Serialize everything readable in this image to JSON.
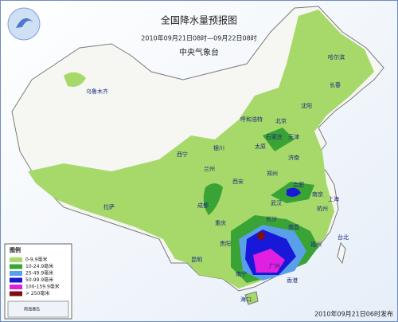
{
  "header": {
    "title": "全国降水量预报图",
    "period": "2010年09月21日08时—09月22日08时",
    "issuer": "中央气象台"
  },
  "cities": [
    "乌鲁木齐",
    "哈尔滨",
    "长春",
    "沈阳",
    "呼和浩特",
    "北京",
    "天津",
    "石家庄",
    "太原",
    "济南",
    "银川",
    "西宁",
    "兰州",
    "郑州",
    "西安",
    "拉萨",
    "成都",
    "重庆",
    "武汉",
    "合肥",
    "南京",
    "上海",
    "杭州",
    "长沙",
    "南昌",
    "福州",
    "台北",
    "贵阳",
    "昆明",
    "南宁",
    "广州",
    "香港",
    "海口"
  ],
  "legend": {
    "title": "图例",
    "items": [
      {
        "label": "0-9.9毫米",
        "color": "#a6d96a"
      },
      {
        "label": "10-24.9毫米",
        "color": "#3aa335"
      },
      {
        "label": "25-49.9毫米",
        "color": "#5aa0e8"
      },
      {
        "label": "50-99.9毫米",
        "color": "#1818d8"
      },
      {
        "label": "100-159.9毫米",
        "color": "#e020e0"
      },
      {
        "label": "> 250毫米",
        "color": "#7a1010"
      }
    ]
  },
  "inset": {
    "label": "南海诸岛"
  },
  "footer": {
    "issued": "2010年09月21日06时发布"
  }
}
